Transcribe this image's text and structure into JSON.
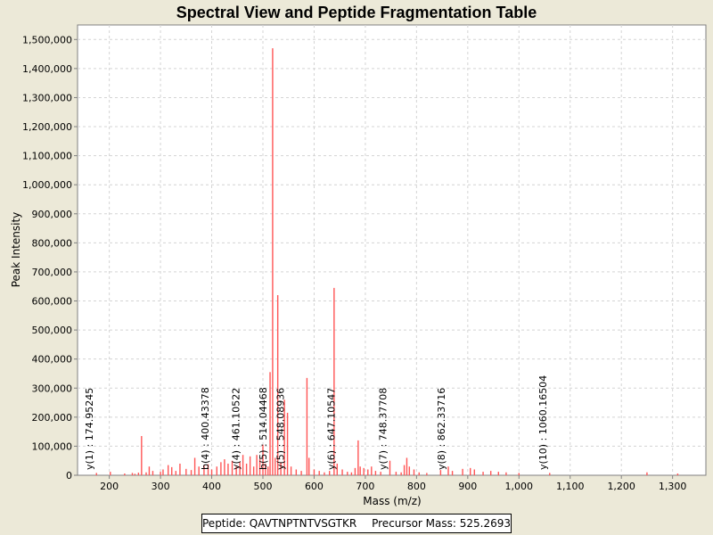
{
  "chart_data": {
    "type": "bar",
    "title": "Spectral View and Peptide Fragmentation Table",
    "xlabel": "Mass (m/z)",
    "ylabel": "Peak Intensity",
    "xlim": [
      138,
      1365
    ],
    "ylim": [
      0,
      1550000
    ],
    "x_ticks": [
      200,
      300,
      400,
      500,
      600,
      700,
      800,
      900,
      1000,
      1100,
      1200,
      1300
    ],
    "x_tick_labels": [
      "200",
      "300",
      "400",
      "500",
      "600",
      "700",
      "800",
      "900",
      "1,000",
      "1,100",
      "1,200",
      "1,300"
    ],
    "y_ticks": [
      0,
      100000,
      200000,
      300000,
      400000,
      500000,
      600000,
      700000,
      800000,
      900000,
      1000000,
      1100000,
      1200000,
      1300000,
      1400000,
      1500000
    ],
    "y_tick_labels": [
      "0",
      "100,000",
      "200,000",
      "300,000",
      "400,000",
      "500,000",
      "600,000",
      "700,000",
      "800,000",
      "900,000",
      "1,000,000",
      "1,100,000",
      "1,200,000",
      "1,300,000",
      "1,400,000",
      "1,500,000"
    ],
    "grid": true,
    "peak_color": "#ff5555",
    "peaks": [
      [
        175,
        8000
      ],
      [
        202,
        12000
      ],
      [
        230,
        6000
      ],
      [
        245,
        8000
      ],
      [
        250,
        5000
      ],
      [
        257,
        9000
      ],
      [
        263,
        135000
      ],
      [
        272,
        10000
      ],
      [
        278,
        30000
      ],
      [
        285,
        15000
      ],
      [
        300,
        12000
      ],
      [
        305,
        20000
      ],
      [
        315,
        35000
      ],
      [
        322,
        28000
      ],
      [
        330,
        15000
      ],
      [
        338,
        40000
      ],
      [
        350,
        22000
      ],
      [
        360,
        18000
      ],
      [
        367,
        60000
      ],
      [
        375,
        30000
      ],
      [
        385,
        35000
      ],
      [
        393,
        38000
      ],
      [
        400,
        20000
      ],
      [
        410,
        30000
      ],
      [
        418,
        45000
      ],
      [
        425,
        55000
      ],
      [
        432,
        40000
      ],
      [
        440,
        50000
      ],
      [
        448,
        30000
      ],
      [
        455,
        45000
      ],
      [
        461,
        70000
      ],
      [
        468,
        40000
      ],
      [
        475,
        65000
      ],
      [
        482,
        30000
      ],
      [
        488,
        70000
      ],
      [
        494,
        55000
      ],
      [
        500,
        105000
      ],
      [
        505,
        40000
      ],
      [
        510,
        30000
      ],
      [
        514,
        355000
      ],
      [
        519,
        1470000
      ],
      [
        524,
        60000
      ],
      [
        529,
        620000
      ],
      [
        535,
        45000
      ],
      [
        542,
        260000
      ],
      [
        548,
        215000
      ],
      [
        555,
        30000
      ],
      [
        565,
        20000
      ],
      [
        575,
        15000
      ],
      [
        586,
        335000
      ],
      [
        590,
        60000
      ],
      [
        600,
        20000
      ],
      [
        610,
        15000
      ],
      [
        620,
        10000
      ],
      [
        630,
        15000
      ],
      [
        639,
        645000
      ],
      [
        645,
        40000
      ],
      [
        655,
        20000
      ],
      [
        665,
        12000
      ],
      [
        673,
        10000
      ],
      [
        680,
        25000
      ],
      [
        686,
        120000
      ],
      [
        690,
        30000
      ],
      [
        697,
        25000
      ],
      [
        705,
        20000
      ],
      [
        712,
        30000
      ],
      [
        720,
        15000
      ],
      [
        730,
        12000
      ],
      [
        748,
        50000
      ],
      [
        760,
        12000
      ],
      [
        770,
        10000
      ],
      [
        776,
        35000
      ],
      [
        781,
        60000
      ],
      [
        786,
        30000
      ],
      [
        795,
        20000
      ],
      [
        805,
        10000
      ],
      [
        820,
        8000
      ],
      [
        847,
        18000
      ],
      [
        862,
        30000
      ],
      [
        870,
        15000
      ],
      [
        890,
        22000
      ],
      [
        905,
        25000
      ],
      [
        913,
        20000
      ],
      [
        930,
        12000
      ],
      [
        945,
        15000
      ],
      [
        960,
        12000
      ],
      [
        975,
        10000
      ],
      [
        1000,
        8000
      ],
      [
        1060,
        8000
      ],
      [
        1250,
        10000
      ],
      [
        1310,
        6000
      ]
    ],
    "annotations": [
      {
        "mz": 174.95245,
        "label": "y(1) : 174.95245"
      },
      {
        "mz": 400.43378,
        "label": "b(4) : 400.43378"
      },
      {
        "mz": 461.10522,
        "label": "y(4) : 461.10522"
      },
      {
        "mz": 514.04468,
        "label": "b(5) : 514.04468"
      },
      {
        "mz": 548.08936,
        "label": "y(5) : 548.08936"
      },
      {
        "mz": 647.10547,
        "label": "y(6) : 647.10547"
      },
      {
        "mz": 748.37708,
        "label": "y(7) : 748.37708"
      },
      {
        "mz": 862.33716,
        "label": "y(8) : 862.33716"
      },
      {
        "mz": 1060.16504,
        "label": "y(10) : 1060.16504"
      }
    ]
  },
  "legend": {
    "peptide": "Peptide: QAVTNPTNTVSGTKR",
    "precursor": "Precursor Mass: 525.2693"
  }
}
